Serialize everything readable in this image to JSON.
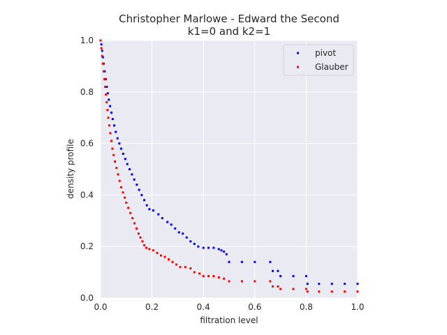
{
  "chart_data": {
    "type": "scatter",
    "title": "Christopher Marlowe - Edward the Second",
    "subtitle": "k1=0 and k2=1",
    "xlabel": "filtration level",
    "ylabel": "density profile",
    "xlim": [
      0,
      1
    ],
    "ylim": [
      0,
      1
    ],
    "xticks": [
      "0.0",
      "0.2",
      "0.4",
      "0.6",
      "0.8",
      "1.0"
    ],
    "yticks": [
      "0.0",
      "0.2",
      "0.4",
      "0.6",
      "0.8",
      "1.0"
    ],
    "grid": true,
    "legend_position": "top-right",
    "background": "#eaeaf2",
    "series": [
      {
        "name": "pivot",
        "color": "#0000ff",
        "points": [
          [
            0.0,
            1.0
          ],
          [
            0.003,
            0.985
          ],
          [
            0.006,
            0.96
          ],
          [
            0.009,
            0.935
          ],
          [
            0.012,
            0.91
          ],
          [
            0.016,
            0.88
          ],
          [
            0.02,
            0.85
          ],
          [
            0.024,
            0.82
          ],
          [
            0.028,
            0.795
          ],
          [
            0.032,
            0.77
          ],
          [
            0.037,
            0.745
          ],
          [
            0.042,
            0.72
          ],
          [
            0.047,
            0.695
          ],
          [
            0.053,
            0.67
          ],
          [
            0.059,
            0.645
          ],
          [
            0.066,
            0.62
          ],
          [
            0.073,
            0.6
          ],
          [
            0.08,
            0.58
          ],
          [
            0.088,
            0.56
          ],
          [
            0.096,
            0.54
          ],
          [
            0.104,
            0.52
          ],
          [
            0.113,
            0.5
          ],
          [
            0.122,
            0.48
          ],
          [
            0.131,
            0.46
          ],
          [
            0.141,
            0.44
          ],
          [
            0.15,
            0.42
          ],
          [
            0.16,
            0.4
          ],
          [
            0.17,
            0.38
          ],
          [
            0.18,
            0.36
          ],
          [
            0.19,
            0.345
          ],
          [
            0.205,
            0.34
          ],
          [
            0.225,
            0.325
          ],
          [
            0.24,
            0.31
          ],
          [
            0.26,
            0.295
          ],
          [
            0.275,
            0.285
          ],
          [
            0.29,
            0.27
          ],
          [
            0.305,
            0.255
          ],
          [
            0.32,
            0.25
          ],
          [
            0.335,
            0.235
          ],
          [
            0.35,
            0.22
          ],
          [
            0.365,
            0.21
          ],
          [
            0.38,
            0.2
          ],
          [
            0.4,
            0.195
          ],
          [
            0.42,
            0.195
          ],
          [
            0.44,
            0.195
          ],
          [
            0.46,
            0.19
          ],
          [
            0.47,
            0.185
          ],
          [
            0.48,
            0.18
          ],
          [
            0.49,
            0.17
          ],
          [
            0.5,
            0.14
          ],
          [
            0.55,
            0.14
          ],
          [
            0.6,
            0.14
          ],
          [
            0.66,
            0.14
          ],
          [
            0.67,
            0.105
          ],
          [
            0.69,
            0.105
          ],
          [
            0.7,
            0.085
          ],
          [
            0.75,
            0.085
          ],
          [
            0.8,
            0.085
          ],
          [
            0.805,
            0.055
          ],
          [
            0.85,
            0.055
          ],
          [
            0.9,
            0.055
          ],
          [
            0.95,
            0.055
          ],
          [
            1.0,
            0.055
          ]
        ]
      },
      {
        "name": "Glauber",
        "color": "#ff0000",
        "points": [
          [
            0.0,
            1.0
          ],
          [
            0.003,
            0.97
          ],
          [
            0.006,
            0.94
          ],
          [
            0.009,
            0.91
          ],
          [
            0.012,
            0.88
          ],
          [
            0.015,
            0.85
          ],
          [
            0.018,
            0.82
          ],
          [
            0.021,
            0.79
          ],
          [
            0.024,
            0.76
          ],
          [
            0.027,
            0.73
          ],
          [
            0.03,
            0.7
          ],
          [
            0.034,
            0.67
          ],
          [
            0.038,
            0.64
          ],
          [
            0.042,
            0.61
          ],
          [
            0.046,
            0.58
          ],
          [
            0.051,
            0.555
          ],
          [
            0.056,
            0.53
          ],
          [
            0.062,
            0.505
          ],
          [
            0.068,
            0.48
          ],
          [
            0.074,
            0.455
          ],
          [
            0.08,
            0.43
          ],
          [
            0.087,
            0.41
          ],
          [
            0.094,
            0.39
          ],
          [
            0.1,
            0.37
          ],
          [
            0.108,
            0.35
          ],
          [
            0.116,
            0.33
          ],
          [
            0.124,
            0.31
          ],
          [
            0.132,
            0.29
          ],
          [
            0.14,
            0.27
          ],
          [
            0.148,
            0.25
          ],
          [
            0.155,
            0.235
          ],
          [
            0.163,
            0.22
          ],
          [
            0.17,
            0.205
          ],
          [
            0.178,
            0.195
          ],
          [
            0.19,
            0.19
          ],
          [
            0.205,
            0.185
          ],
          [
            0.22,
            0.175
          ],
          [
            0.235,
            0.165
          ],
          [
            0.25,
            0.16
          ],
          [
            0.265,
            0.15
          ],
          [
            0.28,
            0.14
          ],
          [
            0.295,
            0.13
          ],
          [
            0.31,
            0.12
          ],
          [
            0.33,
            0.12
          ],
          [
            0.35,
            0.115
          ],
          [
            0.365,
            0.1
          ],
          [
            0.385,
            0.095
          ],
          [
            0.4,
            0.085
          ],
          [
            0.42,
            0.085
          ],
          [
            0.44,
            0.085
          ],
          [
            0.46,
            0.08
          ],
          [
            0.48,
            0.075
          ],
          [
            0.5,
            0.065
          ],
          [
            0.55,
            0.065
          ],
          [
            0.6,
            0.065
          ],
          [
            0.66,
            0.065
          ],
          [
            0.67,
            0.045
          ],
          [
            0.69,
            0.045
          ],
          [
            0.7,
            0.035
          ],
          [
            0.75,
            0.035
          ],
          [
            0.8,
            0.035
          ],
          [
            0.805,
            0.025
          ],
          [
            0.85,
            0.025
          ],
          [
            0.9,
            0.025
          ],
          [
            0.95,
            0.025
          ],
          [
            1.0,
            0.025
          ]
        ]
      }
    ]
  }
}
